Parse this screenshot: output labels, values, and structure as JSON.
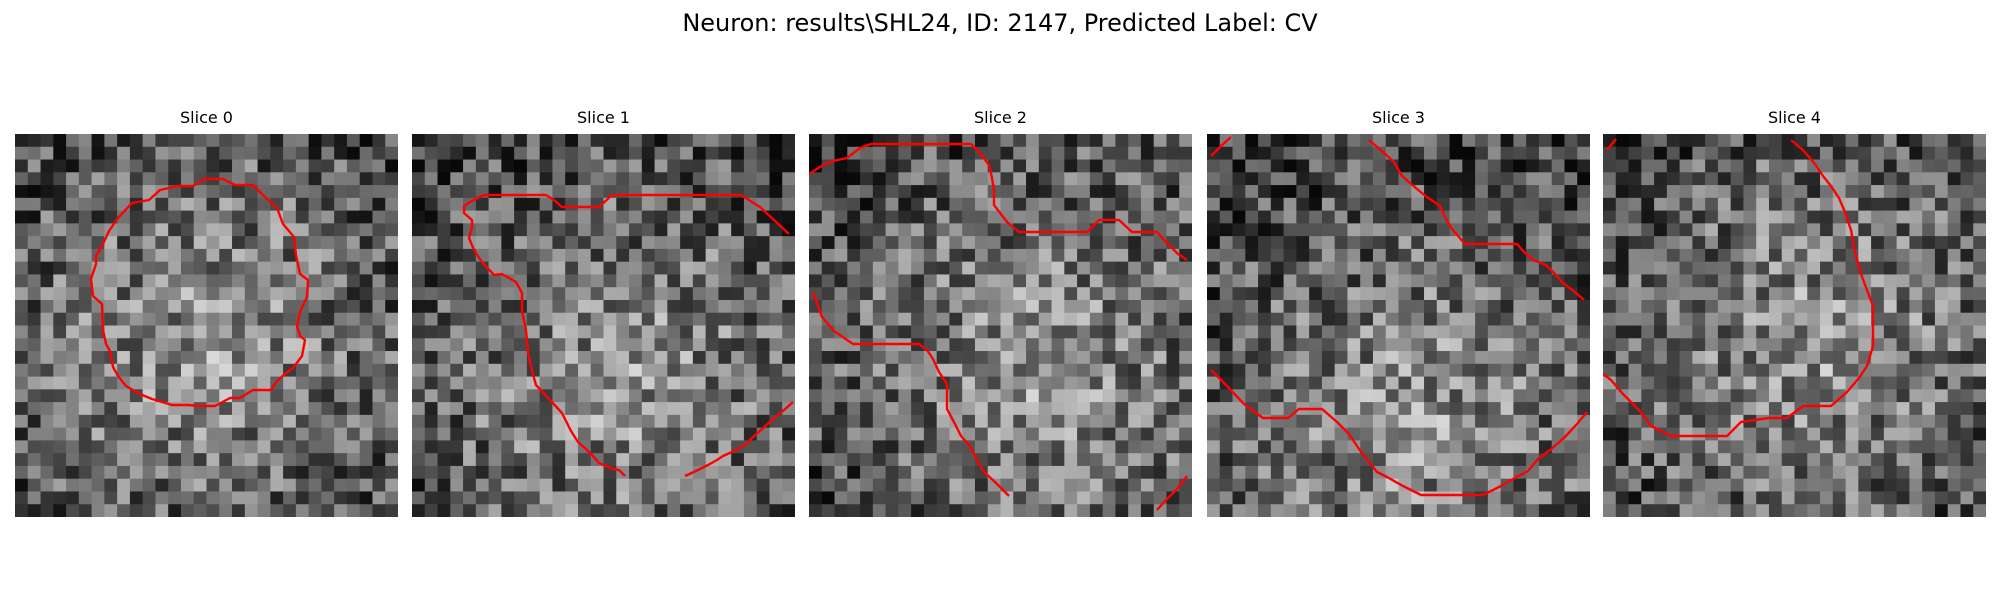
{
  "figure": {
    "title": "Neuron: results\\SHL24, ID: 2147, Predicted Label: CV"
  },
  "panels": [
    {
      "title": "Slice 0",
      "seed": 11,
      "contour_color": "#ff0000"
    },
    {
      "title": "Slice 1",
      "seed": 23,
      "contour_color": "#ff0000"
    },
    {
      "title": "Slice 2",
      "seed": 37,
      "contour_color": "#ff0000"
    },
    {
      "title": "Slice 3",
      "seed": 41,
      "contour_color": "#ff0000"
    },
    {
      "title": "Slice 4",
      "seed": 53,
      "contour_color": "#ff0000"
    }
  ],
  "colormap": "gray",
  "image_grid": "30x30"
}
